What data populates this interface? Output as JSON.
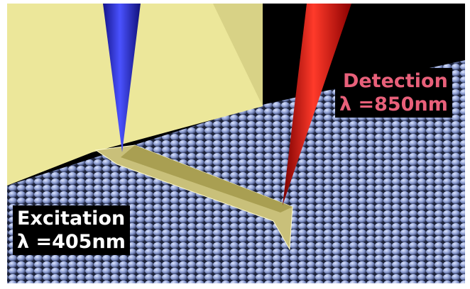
{
  "labels": [
    {
      "title": "Detection",
      "wavelength": "λ =850nm"
    },
    {
      "title": "Excitation",
      "wavelength": "λ =405nm"
    }
  ]
}
